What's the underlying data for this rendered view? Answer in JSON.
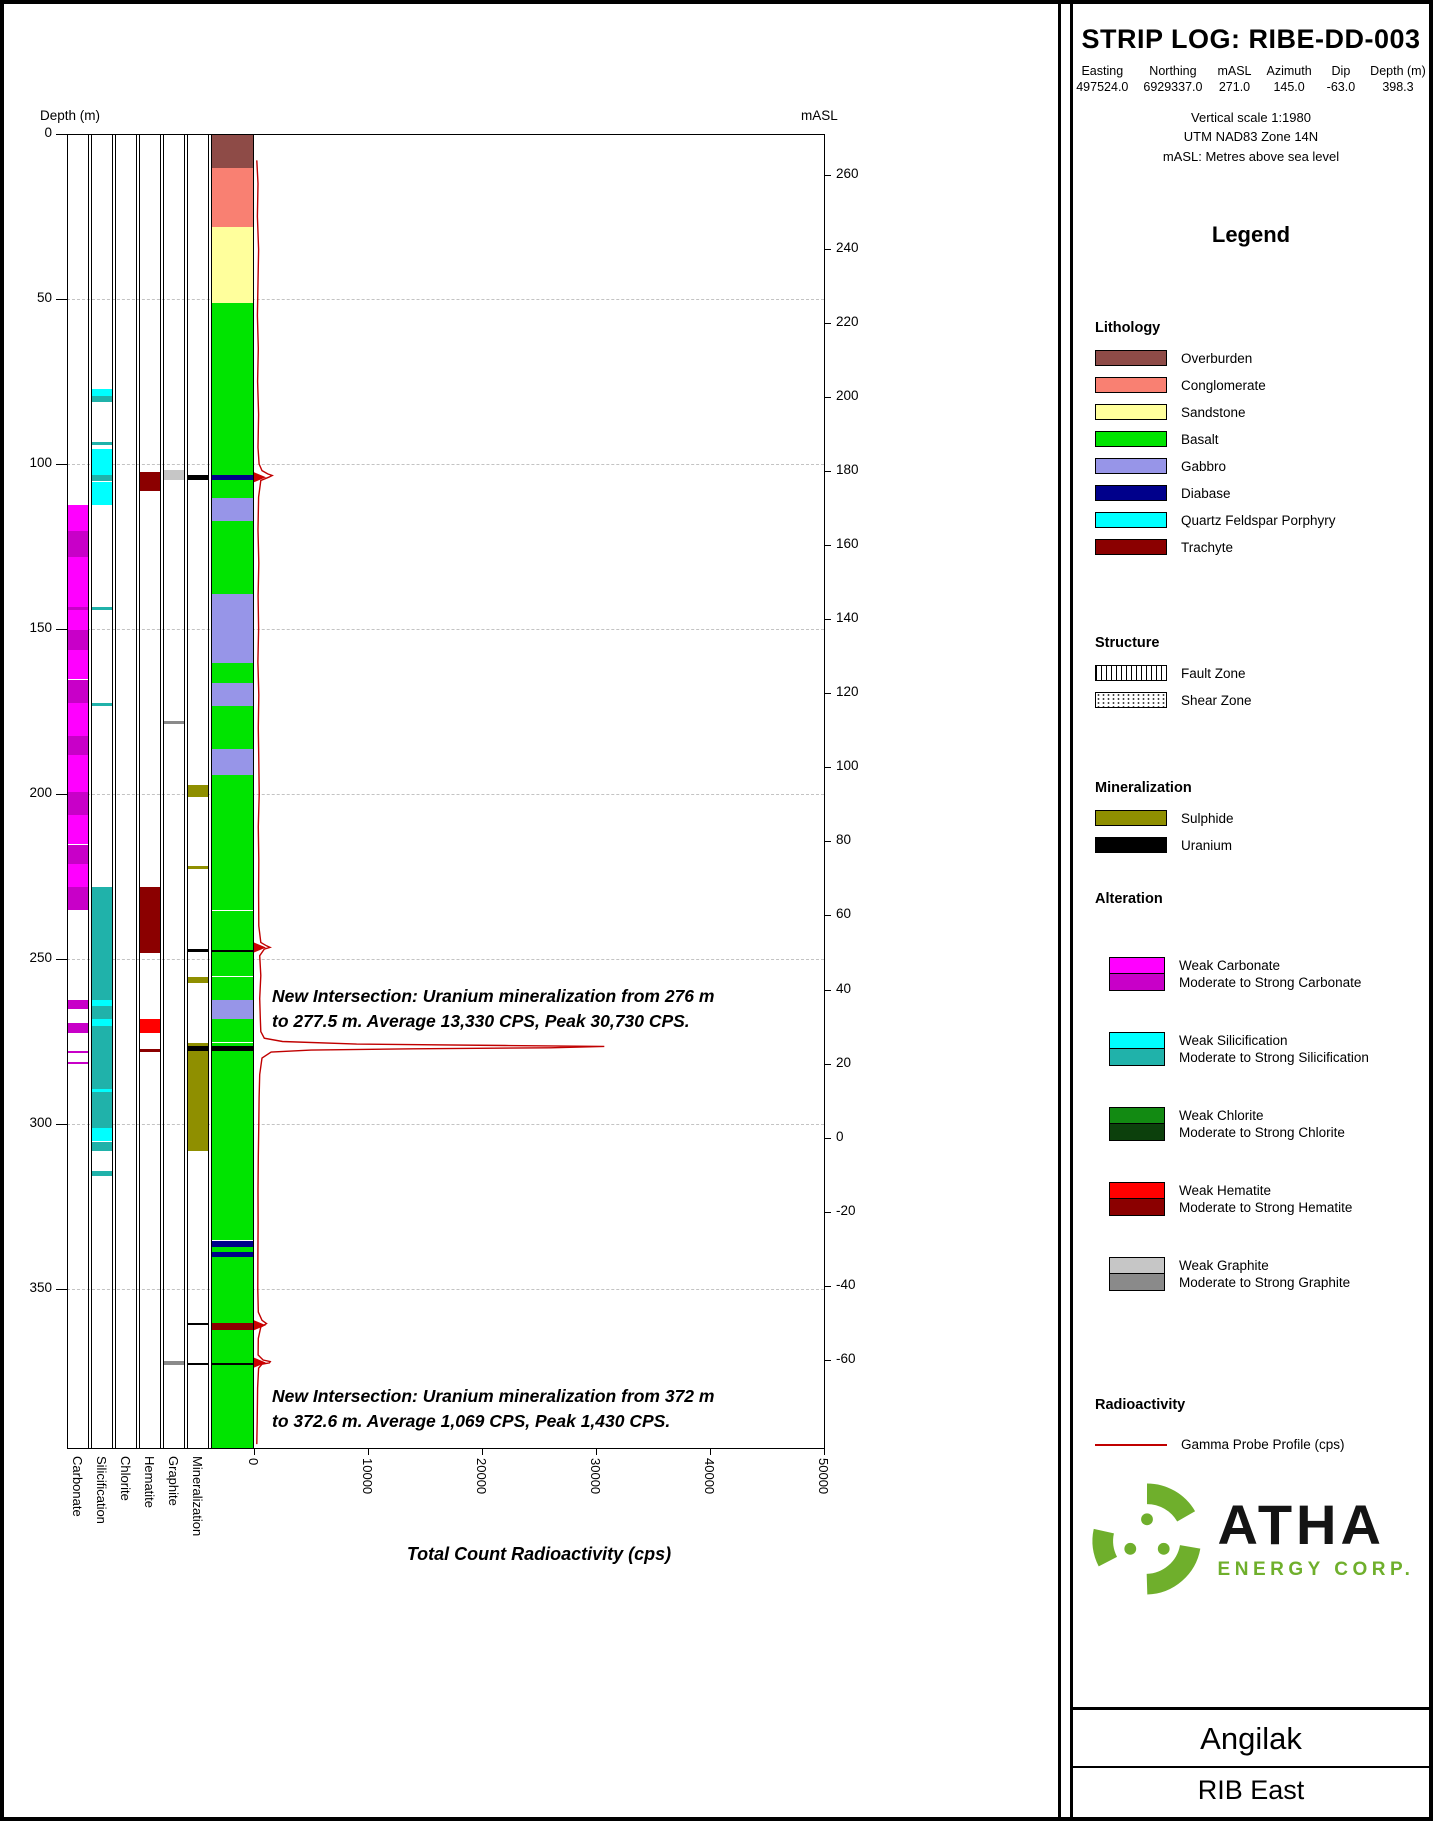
{
  "title_block": {
    "title": "STRIP LOG: RIBE-DD-003",
    "fields": [
      {
        "label": "Easting",
        "value": "497524.0"
      },
      {
        "label": "Northing",
        "value": "6929337.0"
      },
      {
        "label": "mASL",
        "value": "271.0"
      },
      {
        "label": "Azimuth",
        "value": "145.0"
      },
      {
        "label": "Dip",
        "value": "-63.0"
      },
      {
        "label": "Depth (m)",
        "value": "398.3"
      }
    ],
    "notes": [
      "Vertical scale 1:1980",
      "UTM NAD83 Zone 14N",
      "mASL: Metres above sea level"
    ]
  },
  "legend": {
    "heading": "Legend",
    "lithology": {
      "heading": "Lithology",
      "items": [
        {
          "label": "Overburden",
          "color_key": "overburden"
        },
        {
          "label": "Conglomerate",
          "color_key": "conglomerate"
        },
        {
          "label": "Sandstone",
          "color_key": "sandstone"
        },
        {
          "label": "Basalt",
          "color_key": "basalt"
        },
        {
          "label": "Gabbro",
          "color_key": "gabbro"
        },
        {
          "label": "Diabase",
          "color_key": "diabase"
        },
        {
          "label": "Quartz Feldspar Porphyry",
          "color_key": "qfp"
        },
        {
          "label": "Trachyte",
          "color_key": "trachyte"
        }
      ]
    },
    "structure": {
      "heading": "Structure",
      "items": [
        {
          "label": "Fault Zone",
          "pattern": "fault"
        },
        {
          "label": "Shear Zone",
          "pattern": "shear"
        }
      ]
    },
    "mineralization": {
      "heading": "Mineralization",
      "items": [
        {
          "label": "Sulphide",
          "color_key": "sulphide"
        },
        {
          "label": "Uranium",
          "color_key": "uranium"
        }
      ]
    },
    "alteration": {
      "heading": "Alteration",
      "pairs": [
        {
          "weak_label": "Weak Carbonate",
          "strong_label": "Moderate to Strong Carbonate",
          "weak_key": "carbonate_weak",
          "strong_key": "carbonate_strong"
        },
        {
          "weak_label": "Weak Silicification",
          "strong_label": "Moderate to Strong Silicification",
          "weak_key": "silicification_weak",
          "strong_key": "silicification_strong"
        },
        {
          "weak_label": "Weak Chlorite",
          "strong_label": "Moderate to Strong Chlorite",
          "weak_key": "chlorite_weak",
          "strong_key": "chlorite_strong"
        },
        {
          "weak_label": "Weak Hematite",
          "strong_label": "Moderate to Strong Hematite",
          "weak_key": "hematite_weak",
          "strong_key": "hematite_strong"
        },
        {
          "weak_label": "Weak Graphite",
          "strong_label": "Moderate to Strong Graphite",
          "weak_key": "graphite_weak",
          "strong_key": "graphite_strong"
        }
      ]
    },
    "radioactivity": {
      "heading": "Radioactivity",
      "item_label": "Gamma Probe Profile (cps)"
    }
  },
  "logo": {
    "name": "ATHA",
    "subtitle": "ENERGY CORP.",
    "green": "#6faf2c"
  },
  "footer": {
    "project": "Angilak",
    "area": "RIB East"
  },
  "annotations": [
    {
      "text": "New Intersection: Uranium mineralization from 276 m\nto 277.5 m. Average 13,330 CPS, Peak 30,730 CPS."
    },
    {
      "text": "New Intersection: Uranium mineralization from 372 m\nto 372.6 m. Average 1,069 CPS, Peak 1,430 CPS."
    }
  ],
  "colors": {
    "carbonate_weak": "#FF00FF",
    "carbonate_strong": "#C800C8",
    "silicification_weak": "#00FFFF",
    "silicification_strong": "#20B2AA",
    "chlorite_weak": "#128A12",
    "chlorite_strong": "#0C400C",
    "hematite_weak": "#FF0000",
    "hematite_strong": "#8B0000",
    "graphite_weak": "#C6C6C6",
    "graphite_strong": "#8A8A8A",
    "sulphide": "#8F8F00",
    "uranium": "#000000",
    "overburden": "#8E4B47",
    "conglomerate": "#F98072",
    "sandstone": "#FFFF9C",
    "basalt": "#00E400",
    "gabbro": "#9795E8",
    "diabase": "#00008B",
    "qfp": "#00FFFF",
    "trachyte": "#8B0000",
    "uranium_band": "#000000",
    "gamma": "#C00000"
  },
  "chart_data": {
    "type": "strip-log",
    "depth_axis": {
      "label": "Depth (m)",
      "ticks": [
        0,
        50,
        100,
        150,
        200,
        250,
        300,
        350
      ],
      "range_m": [
        0,
        398.3
      ]
    },
    "masl_axis": {
      "label": "mASL",
      "ticks": [
        260,
        240,
        220,
        200,
        180,
        160,
        140,
        120,
        100,
        80,
        60,
        40,
        20,
        0,
        -20,
        -40,
        -60
      ],
      "collar_masl": 271.0
    },
    "gamma_axis": {
      "label": "Total Count Radioactivity (cps)",
      "ticks": [
        0,
        10000,
        20000,
        30000,
        40000,
        50000
      ],
      "range": [
        0,
        50000
      ]
    },
    "tracks": [
      {
        "key": "carbonate",
        "label": "Carbonate",
        "intervals": [
          [
            112,
            120,
            "weak"
          ],
          [
            120,
            128,
            "strong"
          ],
          [
            128,
            143,
            "weak"
          ],
          [
            143,
            144,
            "strong"
          ],
          [
            144,
            150,
            "weak"
          ],
          [
            150,
            156,
            "strong"
          ],
          [
            156,
            165,
            "weak"
          ],
          [
            165,
            172,
            "strong"
          ],
          [
            172,
            182,
            "weak"
          ],
          [
            182,
            188,
            "strong"
          ],
          [
            188,
            199,
            "weak"
          ],
          [
            199,
            206,
            "strong"
          ],
          [
            206,
            215,
            "weak"
          ],
          [
            215,
            221,
            "strong"
          ],
          [
            221,
            228,
            "weak"
          ],
          [
            228,
            235,
            "strong"
          ],
          [
            262,
            265,
            "strong"
          ],
          [
            269,
            272,
            "strong"
          ],
          [
            277.5,
            278.2,
            "strong"
          ],
          [
            281,
            281.6,
            "strong"
          ]
        ]
      },
      {
        "key": "silicification",
        "label": "Silicification",
        "intervals": [
          [
            77,
            79,
            "weak"
          ],
          [
            79,
            81,
            "strong"
          ],
          [
            93,
            94,
            "strong"
          ],
          [
            95,
            103,
            "weak"
          ],
          [
            103,
            105,
            "strong"
          ],
          [
            105,
            112,
            "weak"
          ],
          [
            143,
            144,
            "strong"
          ],
          [
            172,
            173,
            "strong"
          ],
          [
            228,
            262,
            "strong"
          ],
          [
            262,
            264,
            "weak"
          ],
          [
            264,
            268,
            "strong"
          ],
          [
            268,
            270,
            "weak"
          ],
          [
            270,
            289,
            "strong"
          ],
          [
            289,
            290,
            "weak"
          ],
          [
            290,
            301,
            "strong"
          ],
          [
            301,
            305,
            "weak"
          ],
          [
            305,
            308,
            "strong"
          ],
          [
            314,
            315.5,
            "strong"
          ]
        ]
      },
      {
        "key": "chlorite",
        "label": "Chlorite",
        "intervals": []
      },
      {
        "key": "hematite",
        "label": "Hematite",
        "intervals": [
          [
            102,
            108,
            "strong"
          ],
          [
            228,
            248,
            "strong"
          ],
          [
            268,
            272,
            "weak"
          ],
          [
            277,
            278,
            "strong"
          ]
        ]
      },
      {
        "key": "graphite",
        "label": "Graphite",
        "intervals": [
          [
            101.5,
            104.5,
            "weak"
          ],
          [
            177.5,
            178.5,
            "strong"
          ],
          [
            371.5,
            372.6,
            "strong"
          ]
        ]
      },
      {
        "key": "mineralization",
        "label": "Mineralization",
        "intervals": [
          [
            103,
            104.5,
            "uranium"
          ],
          [
            197,
            200.5,
            "sulphide"
          ],
          [
            221.5,
            222.5,
            "sulphide"
          ],
          [
            246.8,
            247.6,
            "uranium"
          ],
          [
            255,
            257,
            "sulphide"
          ],
          [
            275,
            308,
            "sulphide"
          ],
          [
            276,
            277.5,
            "uranium"
          ],
          [
            360,
            360.6,
            "uranium"
          ],
          [
            372,
            372.6,
            "uranium"
          ]
        ]
      }
    ],
    "lithology": [
      [
        0,
        10,
        "overburden"
      ],
      [
        10,
        28,
        "conglomerate"
      ],
      [
        28,
        51,
        "sandstone"
      ],
      [
        51,
        67,
        "basalt"
      ],
      [
        67,
        74,
        "basalt",
        "shear"
      ],
      [
        74,
        77,
        "basalt"
      ],
      [
        77,
        90,
        "basalt",
        "shear"
      ],
      [
        90,
        95,
        "basalt"
      ],
      [
        95,
        101,
        "basalt",
        "shear"
      ],
      [
        101,
        103,
        "basalt"
      ],
      [
        103,
        104.5,
        "diabase"
      ],
      [
        104.5,
        110,
        "basalt"
      ],
      [
        110,
        117,
        "gabbro",
        "shear"
      ],
      [
        117,
        126,
        "basalt",
        "shear"
      ],
      [
        126,
        139,
        "basalt"
      ],
      [
        139,
        160,
        "gabbro"
      ],
      [
        160,
        166,
        "basalt",
        "shear"
      ],
      [
        166,
        173,
        "gabbro"
      ],
      [
        173,
        179,
        "basalt",
        "shear"
      ],
      [
        179,
        186,
        "basalt"
      ],
      [
        186,
        194,
        "gabbro"
      ],
      [
        194,
        203,
        "basalt"
      ],
      [
        203,
        212,
        "basalt",
        "shear"
      ],
      [
        212,
        218,
        "basalt"
      ],
      [
        218,
        227,
        "basalt",
        "shear"
      ],
      [
        227,
        235,
        "basalt"
      ],
      [
        235,
        242,
        "basalt",
        "shear"
      ],
      [
        242,
        247,
        "basalt"
      ],
      [
        247,
        247.6,
        "uranium_band"
      ],
      [
        247.6,
        255,
        "basalt",
        "shear"
      ],
      [
        255,
        259,
        "basalt"
      ],
      [
        259,
        262,
        "basalt",
        "shear"
      ],
      [
        262,
        268,
        "gabbro"
      ],
      [
        268,
        275,
        "basalt"
      ],
      [
        275,
        276,
        "basalt",
        "shear"
      ],
      [
        276,
        277.5,
        "uranium_band"
      ],
      [
        277.5,
        296,
        "basalt",
        "shear"
      ],
      [
        296,
        300,
        "basalt"
      ],
      [
        300,
        308,
        "basalt",
        "shear"
      ],
      [
        308,
        335,
        "basalt"
      ],
      [
        335,
        337,
        "diabase"
      ],
      [
        337,
        338.5,
        "basalt"
      ],
      [
        338.5,
        340,
        "diabase"
      ],
      [
        340,
        360,
        "basalt"
      ],
      [
        360,
        362,
        "trachyte"
      ],
      [
        362,
        372,
        "basalt"
      ],
      [
        372,
        372.6,
        "uranium_band"
      ],
      [
        372.6,
        398.3,
        "basalt"
      ]
    ],
    "gamma_profile_cps": [
      [
        8,
        250
      ],
      [
        15,
        350
      ],
      [
        25,
        300
      ],
      [
        35,
        400
      ],
      [
        45,
        350
      ],
      [
        55,
        300
      ],
      [
        65,
        380
      ],
      [
        75,
        320
      ],
      [
        85,
        400
      ],
      [
        95,
        350
      ],
      [
        100,
        450
      ],
      [
        102,
        700
      ],
      [
        103,
        1200
      ],
      [
        103.5,
        1600
      ],
      [
        104,
        1300
      ],
      [
        105,
        600
      ],
      [
        110,
        400
      ],
      [
        120,
        350
      ],
      [
        130,
        420
      ],
      [
        140,
        360
      ],
      [
        150,
        400
      ],
      [
        160,
        340
      ],
      [
        170,
        420
      ],
      [
        180,
        380
      ],
      [
        190,
        420
      ],
      [
        200,
        460
      ],
      [
        210,
        380
      ],
      [
        220,
        420
      ],
      [
        230,
        400
      ],
      [
        240,
        420
      ],
      [
        245,
        600
      ],
      [
        246,
        1100
      ],
      [
        246.5,
        1400
      ],
      [
        247,
        900
      ],
      [
        249,
        500
      ],
      [
        255,
        600
      ],
      [
        262,
        500
      ],
      [
        268,
        550
      ],
      [
        272,
        600
      ],
      [
        274,
        900
      ],
      [
        275,
        2500
      ],
      [
        275.8,
        9000
      ],
      [
        276.2,
        22000
      ],
      [
        276.5,
        30730
      ],
      [
        276.9,
        26000
      ],
      [
        277.2,
        14000
      ],
      [
        277.6,
        5000
      ],
      [
        278.2,
        1500
      ],
      [
        280,
        700
      ],
      [
        285,
        500
      ],
      [
        292,
        450
      ],
      [
        300,
        420
      ],
      [
        310,
        380
      ],
      [
        320,
        350
      ],
      [
        330,
        360
      ],
      [
        340,
        340
      ],
      [
        350,
        330
      ],
      [
        357,
        380
      ],
      [
        359.5,
        700
      ],
      [
        360.5,
        1100
      ],
      [
        361.5,
        600
      ],
      [
        365,
        380
      ],
      [
        370,
        360
      ],
      [
        371.5,
        800
      ],
      [
        372,
        1430
      ],
      [
        372.4,
        1350
      ],
      [
        372.8,
        700
      ],
      [
        374,
        400
      ],
      [
        380,
        320
      ],
      [
        390,
        280
      ],
      [
        397,
        250
      ]
    ],
    "spike_arrow_depths_m": [
      104,
      246.5,
      361,
      372.3
    ],
    "uranium_intersections": [
      {
        "from_m": 276,
        "to_m": 277.5,
        "avg_cps": 13330,
        "peak_cps": 30730
      },
      {
        "from_m": 372,
        "to_m": 372.6,
        "avg_cps": 1069,
        "peak_cps": 1430
      }
    ]
  }
}
